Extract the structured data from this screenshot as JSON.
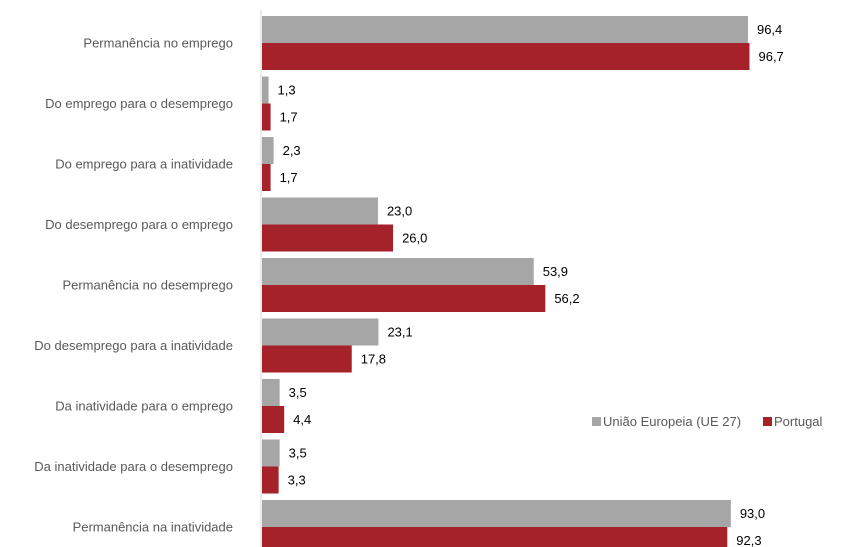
{
  "chart_data": {
    "type": "bar",
    "orientation": "horizontal",
    "categories": [
      "Permanência no emprego",
      "Do emprego para o desemprego",
      "Do emprego para a inatividade",
      "Do desemprego para o emprego",
      "Permanência no desemprego",
      "Do desemprego para a inatividade",
      "Da inatividade para o emprego",
      "Da inatividade para o desemprego",
      "Permanência na inatividade"
    ],
    "series": [
      {
        "name": "União Europeia (UE 27)",
        "color": "#a6a6a6",
        "values": [
          96.4,
          1.3,
          2.3,
          23.0,
          53.9,
          23.1,
          3.5,
          3.5,
          93.0
        ],
        "labels": [
          "96,4",
          "1,3",
          "2,3",
          "23,0",
          "53,9",
          "23,1",
          "3,5",
          "3,5",
          "93,0"
        ]
      },
      {
        "name": "Portugal",
        "color": "#a6222a",
        "values": [
          96.7,
          1.7,
          1.7,
          26.0,
          56.2,
          17.8,
          4.4,
          3.3,
          92.3
        ],
        "labels": [
          "96,7",
          "1,7",
          "1,7",
          "26,0",
          "56,2",
          "17,8",
          "4,4",
          "3,3",
          "92,3"
        ]
      }
    ],
    "xlim": [
      0,
      100
    ],
    "grid": false,
    "legend_position": "right"
  }
}
